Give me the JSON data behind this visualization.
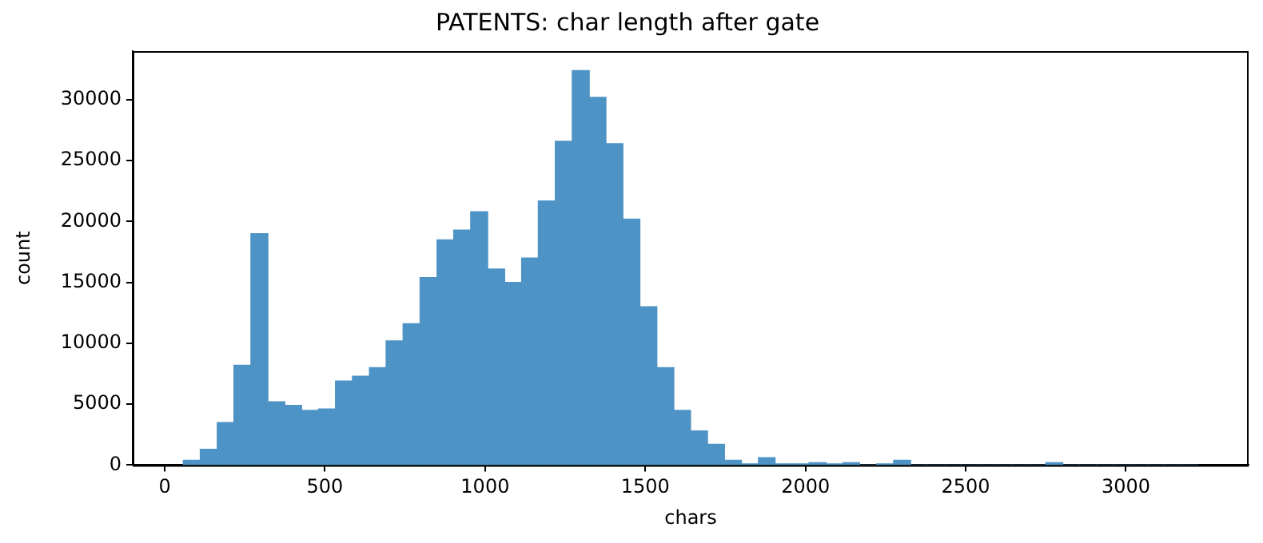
{
  "chart_data": {
    "type": "histogram",
    "title": "PATENTS: char length after gate",
    "xlabel": "chars",
    "ylabel": "count",
    "color": "#4d93c5",
    "bins": [
      58,
      111,
      164,
      216,
      269,
      322,
      375,
      427,
      480,
      533,
      586,
      639,
      691,
      744,
      797,
      850,
      902,
      955,
      1008,
      1061,
      1114,
      1166,
      1219,
      1272,
      1325,
      1377,
      1430,
      1483,
      1536,
      1589,
      1641,
      1694,
      1747,
      1800,
      1853,
      1905,
      1958,
      2011,
      2064,
      2117,
      2169,
      2222,
      2275,
      2328,
      2380,
      2433,
      2486,
      2539,
      2592,
      2644,
      2697,
      2750,
      2803,
      2855,
      2908,
      2961,
      3014,
      3067,
      3119,
      3172,
      3225
    ],
    "values": [
      400,
      1300,
      3500,
      8200,
      19000,
      5200,
      4900,
      4500,
      4600,
      6900,
      7300,
      8000,
      10200,
      11600,
      15400,
      18500,
      19300,
      20800,
      16100,
      15000,
      17000,
      21700,
      26600,
      32400,
      30200,
      26400,
      20200,
      13000,
      8000,
      4500,
      2800,
      1700,
      400,
      100,
      600,
      100,
      100,
      200,
      100,
      200,
      0,
      100,
      400,
      0,
      0,
      0,
      0,
      0,
      0,
      0,
      0,
      200,
      0,
      0,
      0,
      0,
      0,
      0,
      0,
      0
    ],
    "xlim": [
      -100,
      3383
    ],
    "ylim": [
      0,
      34000
    ],
    "xticks": [
      0,
      500,
      1000,
      1500,
      2000,
      2500,
      3000
    ],
    "yticks": [
      0,
      5000,
      10000,
      15000,
      20000,
      25000,
      30000
    ],
    "grid": false,
    "legend": false
  }
}
